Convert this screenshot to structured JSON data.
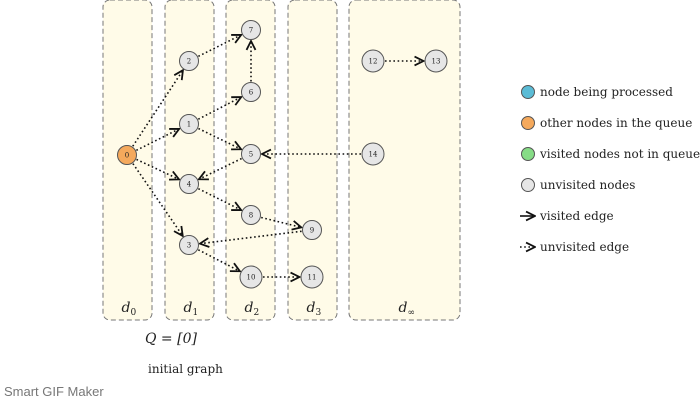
{
  "columns": [
    {
      "id": "d0",
      "base": "d",
      "sub": "0"
    },
    {
      "id": "d1",
      "base": "d",
      "sub": "1"
    },
    {
      "id": "d2",
      "base": "d",
      "sub": "2"
    },
    {
      "id": "d3",
      "base": "d",
      "sub": "3"
    },
    {
      "id": "dinf",
      "base": "d",
      "sub": "∞"
    }
  ],
  "nodes": [
    {
      "id": "0",
      "state": "queue"
    },
    {
      "id": "1",
      "state": "unvisited"
    },
    {
      "id": "2",
      "state": "unvisited"
    },
    {
      "id": "3",
      "state": "unvisited"
    },
    {
      "id": "4",
      "state": "unvisited"
    },
    {
      "id": "5",
      "state": "unvisited"
    },
    {
      "id": "6",
      "state": "unvisited"
    },
    {
      "id": "7",
      "state": "unvisited"
    },
    {
      "id": "8",
      "state": "unvisited"
    },
    {
      "id": "9",
      "state": "unvisited"
    },
    {
      "id": "10",
      "state": "unvisited"
    },
    {
      "id": "11",
      "state": "unvisited"
    },
    {
      "id": "12",
      "state": "unvisited"
    },
    {
      "id": "13",
      "state": "unvisited"
    },
    {
      "id": "14",
      "state": "unvisited"
    }
  ],
  "edges": [
    {
      "from": "0",
      "to": "2",
      "visited": false
    },
    {
      "from": "0",
      "to": "1",
      "visited": false
    },
    {
      "from": "0",
      "to": "4",
      "visited": false
    },
    {
      "from": "0",
      "to": "3",
      "visited": false
    },
    {
      "from": "2",
      "to": "7",
      "visited": false
    },
    {
      "from": "6",
      "to": "7",
      "visited": false
    },
    {
      "from": "1",
      "to": "6",
      "visited": false
    },
    {
      "from": "1",
      "to": "5",
      "visited": false
    },
    {
      "from": "5",
      "to": "4",
      "visited": false
    },
    {
      "from": "14",
      "to": "5",
      "visited": false
    },
    {
      "from": "4",
      "to": "8",
      "visited": false
    },
    {
      "from": "8",
      "to": "9",
      "visited": false
    },
    {
      "from": "9",
      "to": "3",
      "visited": false
    },
    {
      "from": "3",
      "to": "10",
      "visited": false
    },
    {
      "from": "10",
      "to": "11",
      "visited": false
    },
    {
      "from": "12",
      "to": "13",
      "visited": false
    }
  ],
  "colors": {
    "processing": "#5bbcd6",
    "queue": "#f5a95c",
    "visited": "#86dc86",
    "unvisited": "#e6e6e6",
    "column_fill": "#fffbe8",
    "column_border": "#777777"
  },
  "legend": [
    {
      "kind": "node",
      "state": "processing",
      "label": "node being processed"
    },
    {
      "kind": "node",
      "state": "queue",
      "label": "other nodes in the queue"
    },
    {
      "kind": "node",
      "state": "visited",
      "label": "visited nodes not in queue"
    },
    {
      "kind": "node",
      "state": "unvisited",
      "label": "unvisited nodes"
    },
    {
      "kind": "edge",
      "visited": true,
      "label": "visited edge"
    },
    {
      "kind": "edge",
      "visited": false,
      "label": "unvisited edge"
    }
  ],
  "queue_text": "Q = [0]",
  "caption": "initial graph",
  "watermark": "Smart GIF Maker"
}
